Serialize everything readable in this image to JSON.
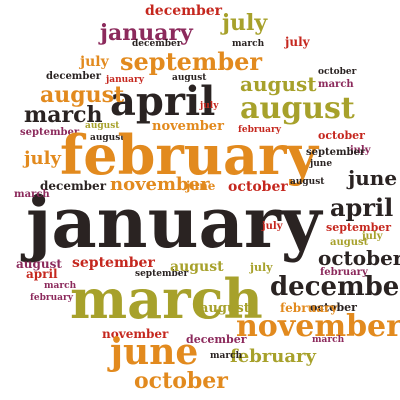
{
  "colors": {
    "black": "#2a2322",
    "orange": "#e28a1e",
    "olive": "#a7a12b",
    "red": "#c5271e",
    "purple": "#8c2a5c",
    "brown": "#7a3d1c",
    "gold": "#c79a24"
  },
  "words": [
    "december",
    "july",
    "january",
    "december",
    "march",
    "july",
    "september",
    "july",
    "december",
    "january",
    "august",
    "october",
    "august",
    "march",
    "april",
    "august",
    "march",
    "august",
    "july",
    "august",
    "november",
    "february",
    "september",
    "august",
    "october",
    "july",
    "february",
    "september",
    "june",
    "july",
    "december",
    "november",
    "june",
    "october",
    "august",
    "june",
    "january",
    "april",
    "september",
    "march",
    "july",
    "august",
    "july",
    "october",
    "february",
    "august",
    "september",
    "july",
    "april",
    "march",
    "september",
    "august",
    "december",
    "february",
    "march",
    "august",
    "october",
    "february",
    "november",
    "november",
    "june",
    "december",
    "february",
    "march",
    "october",
    "march"
  ]
}
